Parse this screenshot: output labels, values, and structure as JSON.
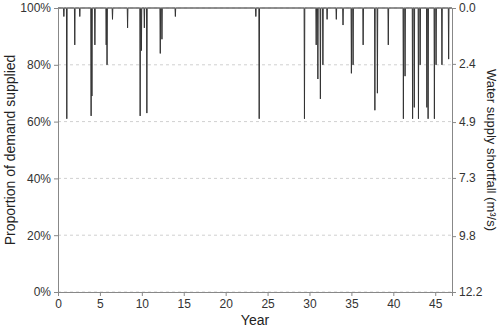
{
  "chart_data": {
    "type": "line",
    "x_label": "Year",
    "y_label": "Proportion of demand supplied",
    "y2_label": "Water supply shortfall (m³/s)",
    "color": "#333333",
    "grid": true,
    "xlim": [
      0,
      47
    ],
    "xticks": [
      0,
      5,
      10,
      15,
      20,
      25,
      30,
      35,
      40,
      45
    ],
    "ylim": [
      0,
      100
    ],
    "yticks": [
      {
        "value": 0,
        "label": "0%"
      },
      {
        "value": 20,
        "label": "20%"
      },
      {
        "value": 40,
        "label": "40%"
      },
      {
        "value": 60,
        "label": "60%"
      },
      {
        "value": 80,
        "label": "80%"
      },
      {
        "value": 100,
        "label": "100%"
      }
    ],
    "y2lim": [
      12.2,
      0
    ],
    "y2ticks": [
      {
        "value": 0,
        "label": "0.0"
      },
      2.4,
      4.9,
      7.3,
      9.8,
      12.2
    ],
    "x": [
      0,
      0.66,
      0.7,
      0.74,
      1.01,
      1.05,
      1.09,
      1.96,
      2,
      2.04,
      2.56,
      2.6,
      2.64,
      3.91,
      3.95,
      3.99,
      4.01,
      4.05,
      4.09,
      4.36,
      4.4,
      4.44,
      5.71,
      5.75,
      5.79,
      5.81,
      5.85,
      5.89,
      6.46,
      6.5,
      6.54,
      8.26,
      8.3,
      8.34,
      9.76,
      9.8,
      9.84,
      9.91,
      9.95,
      9.99,
      10.26,
      10.3,
      10.34,
      10.56,
      10.6,
      10.64,
      12.16,
      12.2,
      12.24,
      12.36,
      12.4,
      12.44,
      13.96,
      14,
      14.04,
      23.56,
      23.6,
      23.64,
      23.96,
      24,
      24.04,
      29.36,
      29.4,
      29.44,
      30.76,
      30.8,
      30.84,
      30.96,
      31,
      31.04,
      31.26,
      31.3,
      31.34,
      31.56,
      31.6,
      31.64,
      32.06,
      32.1,
      32.14,
      33.16,
      33.2,
      33.24,
      33.96,
      34,
      34.04,
      34.96,
      35,
      35.04,
      35.16,
      35.2,
      35.24,
      36.36,
      36.4,
      36.44,
      37.76,
      37.8,
      37.84,
      38.06,
      38.1,
      38.14,
      39.36,
      39.4,
      39.44,
      41.16,
      41.2,
      41.24,
      41.36,
      41.4,
      41.44,
      42.26,
      42.3,
      42.34,
      42.46,
      42.5,
      42.54,
      42.96,
      43,
      43.04,
      43.16,
      43.2,
      43.24,
      43.96,
      44,
      44.04,
      44.11,
      44.15,
      44.19,
      44.86,
      44.9,
      44.94,
      45.06,
      45.1,
      45.14,
      45.76,
      45.8,
      45.84,
      46.56,
      46.6,
      46.64,
      47
    ],
    "values": [
      100,
      100,
      97,
      100,
      100,
      61,
      100,
      100,
      87,
      100,
      100,
      97,
      100,
      100,
      62,
      100,
      100,
      69,
      100,
      100,
      87,
      100,
      100,
      87,
      100,
      100,
      80,
      100,
      100,
      96,
      100,
      100,
      93,
      100,
      100,
      62,
      100,
      100,
      85,
      100,
      100,
      93,
      100,
      100,
      63,
      100,
      100,
      84,
      100,
      100,
      89,
      100,
      100,
      97,
      100,
      100,
      97,
      100,
      100,
      61,
      100,
      100,
      61,
      100,
      100,
      87,
      100,
      100,
      75,
      100,
      100,
      68,
      100,
      100,
      80,
      100,
      100,
      96,
      100,
      100,
      96,
      100,
      100,
      94,
      100,
      100,
      77,
      100,
      100,
      80,
      100,
      100,
      87,
      100,
      100,
      64,
      100,
      100,
      70,
      100,
      100,
      87,
      100,
      100,
      61,
      100,
      100,
      76,
      100,
      100,
      61,
      100,
      100,
      65,
      100,
      100,
      61,
      100,
      100,
      80,
      100,
      100,
      65,
      100,
      100,
      61,
      100,
      100,
      61,
      100,
      100,
      80,
      100,
      100,
      80,
      100,
      100,
      82,
      100,
      100
    ]
  }
}
